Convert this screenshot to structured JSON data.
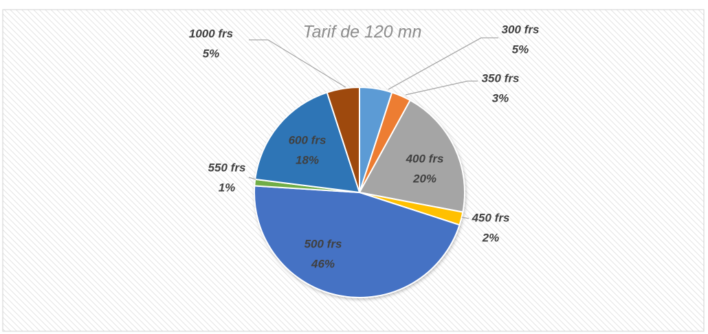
{
  "chart_data": {
    "type": "pie",
    "title": "Tarif de 120 mn",
    "categories": [
      "300 frs",
      "350 frs",
      "400 frs",
      "450 frs",
      "500 frs",
      "550 frs",
      "600 frs",
      "1000 frs"
    ],
    "values": [
      5,
      3,
      20,
      2,
      46,
      1,
      18,
      5
    ],
    "value_labels": [
      "5%",
      "3%",
      "20%",
      "2%",
      "46%",
      "1%",
      "18%",
      "5%"
    ],
    "colors": [
      "#5b9bd5",
      "#ed7d31",
      "#a5a5a5",
      "#ffc000",
      "#4472c4",
      "#70ad47",
      "#2e75b6",
      "#9e480e"
    ]
  }
}
